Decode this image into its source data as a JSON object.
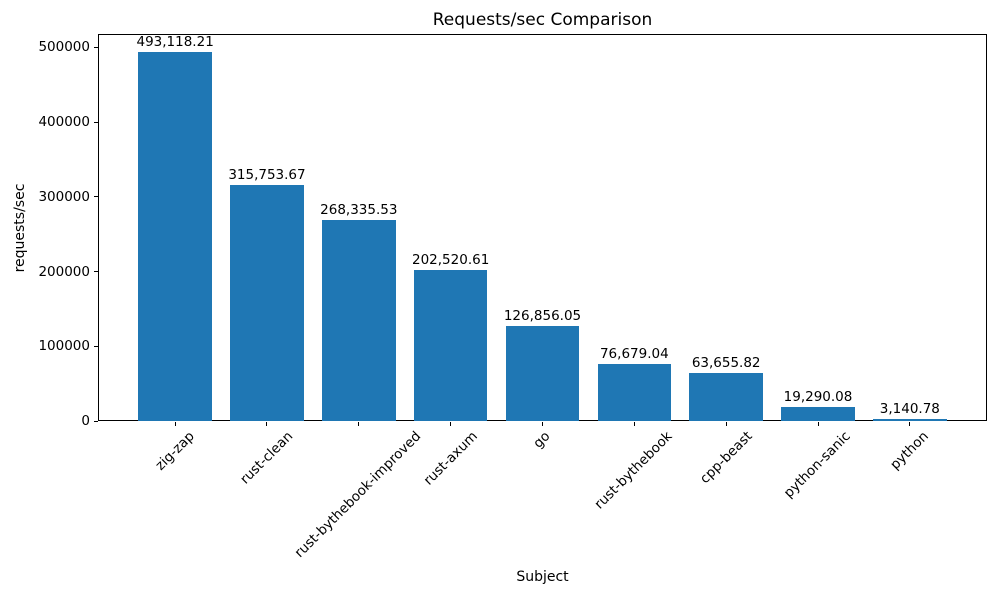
{
  "chart_data": {
    "type": "bar",
    "title": "Requests/sec Comparison",
    "xlabel": "Subject",
    "ylabel": "requests/sec",
    "categories": [
      "zig-zap",
      "rust-clean",
      "rust-bythebook-improved",
      "rust-axum",
      "go",
      "rust-bythebook",
      "cpp-beast",
      "python-sanic",
      "python"
    ],
    "values": [
      493118.21,
      315753.67,
      268335.53,
      202520.61,
      126856.05,
      76679.04,
      63655.82,
      19290.08,
      3140.78
    ],
    "value_labels": [
      "493,118.21",
      "315,753.67",
      "268,335.53",
      "202,520.61",
      "126,856.05",
      "76,679.04",
      "63,655.82",
      "19,290.08",
      "3,140.78"
    ],
    "y_ticks": [
      0,
      100000,
      200000,
      300000,
      400000,
      500000
    ],
    "y_tick_labels": [
      "0",
      "100000",
      "200000",
      "300000",
      "400000",
      "500000"
    ],
    "ylim": [
      0,
      517774
    ],
    "bar_color": "#1f77b4",
    "text_color": "#000000",
    "grid": false,
    "legend": null,
    "x_tick_rotation_deg": 45
  }
}
